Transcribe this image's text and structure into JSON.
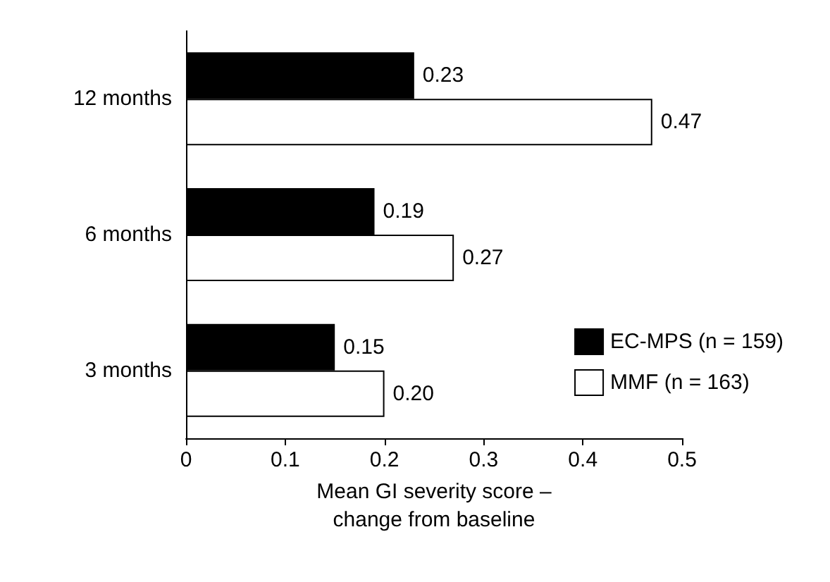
{
  "chart_data": {
    "type": "bar",
    "orientation": "horizontal",
    "categories": [
      "12 months",
      "6 months",
      "3 months"
    ],
    "series": [
      {
        "name": "EC-MPS (n = 159)",
        "color": "#000000",
        "values": [
          0.23,
          0.19,
          0.15
        ],
        "value_labels": [
          "0.23",
          "0.19",
          "0.15"
        ]
      },
      {
        "name": "MMF (n = 163)",
        "color": "#ffffff",
        "values": [
          0.47,
          0.27,
          0.2
        ],
        "value_labels": [
          "0.47",
          "0.27",
          "0.20"
        ]
      }
    ],
    "xlabel": "Mean GI severity score –\nchange from baseline",
    "xlim": [
      0,
      0.5
    ],
    "xticks": [
      0,
      0.1,
      0.2,
      0.3,
      0.4,
      0.5
    ],
    "grid": false,
    "legend": "right"
  }
}
